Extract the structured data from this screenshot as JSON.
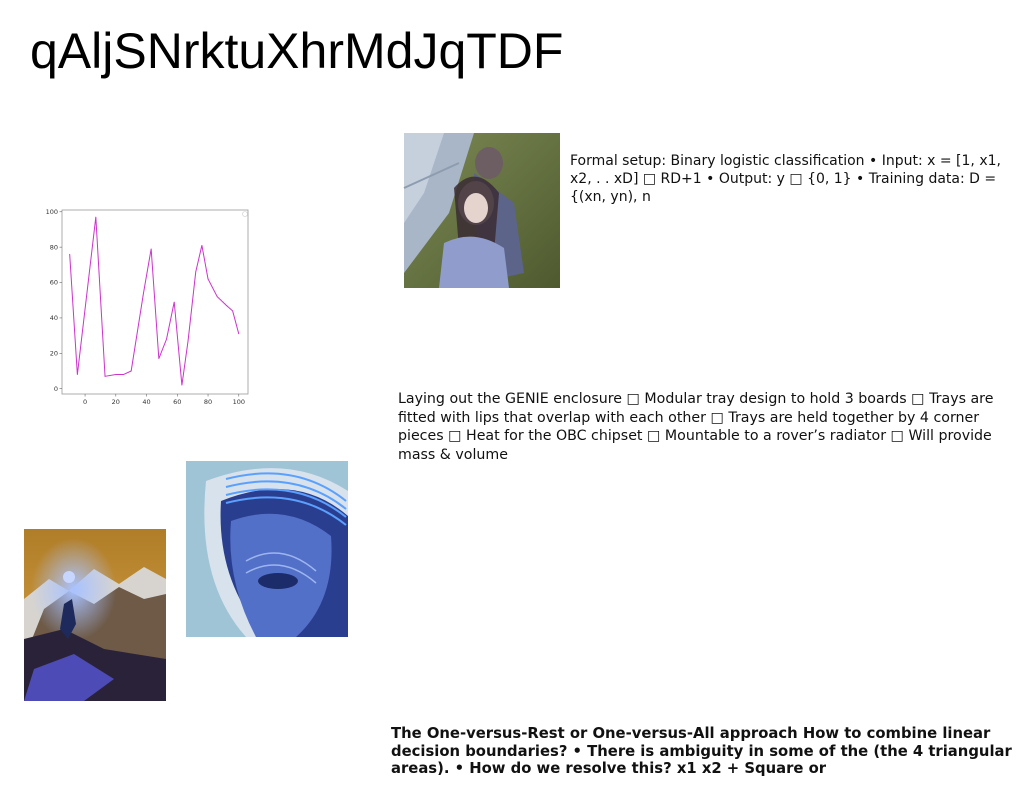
{
  "title": "qAljSNrktuXhrMdJqTDF",
  "text_blocks": {
    "formal_setup": "Formal setup: Binary logistic classification • Input: x = [1, x1, x2, . . xD] □ RD+1 • Output: y □ {0, 1} • Training data: D = {(xn, yn), n",
    "genie": "Laying out the GENIE enclosure □ Modular tray design to hold 3 boards □ Trays are fitted with lips that overlap with each other □ Trays are held together by 4 corner pieces □ Heat for the OBC chipset □ Mountable to a rover’s radiator □ Will provide mass & volume",
    "one_vs_rest": "The One-versus-Rest or One-versus-All approach How to combine linear decision boundaries? • There is ambiguity in some of the (the 4 triangular areas). • How do we resolve this? x1 x2 + Square or"
  },
  "chart_data": {
    "type": "line",
    "x": [
      -10,
      -5,
      0,
      7,
      13,
      20,
      25,
      30,
      38,
      43,
      48,
      53,
      58,
      63,
      67,
      72,
      76,
      80,
      86,
      92,
      96,
      100
    ],
    "series": [
      {
        "values": [
          76,
          8,
          45,
          97,
          7,
          8,
          8,
          10,
          54,
          79,
          17,
          28,
          49,
          2,
          27,
          66,
          81,
          62,
          52,
          47,
          44,
          31
        ]
      }
    ],
    "xlim": [
      -15,
      106
    ],
    "ylim": [
      -3,
      101
    ],
    "xticks": [
      0,
      20,
      40,
      60,
      80,
      100
    ],
    "yticks": [
      0,
      20,
      40,
      60,
      80,
      100
    ],
    "line_color": "#cc33cc",
    "grid": false
  }
}
